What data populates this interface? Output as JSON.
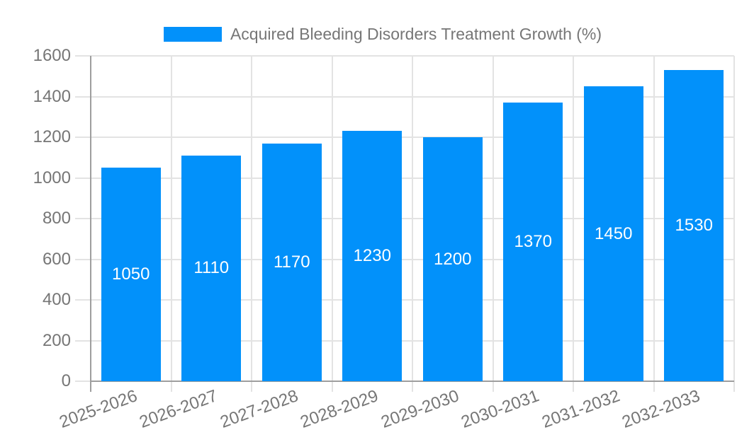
{
  "chart_data": {
    "type": "bar",
    "title": "",
    "categories": [
      "2025-2026",
      "2026-2027",
      "2027-2028",
      "2028-2029",
      "2029-2030",
      "2030-2031",
      "2031-2032",
      "2032-2033"
    ],
    "series": [
      {
        "name": "Acquired Bleeding Disorders Treatment Growth (%)",
        "values": [
          1050,
          1110,
          1170,
          1230,
          1200,
          1370,
          1450,
          1530
        ]
      }
    ],
    "bar_value_labels": [
      "1050",
      "1110",
      "1170",
      "1230",
      "1200",
      "1370",
      "1450",
      "1530"
    ],
    "ylim": [
      0,
      1600
    ],
    "y_ticks": [
      0,
      200,
      400,
      600,
      800,
      1000,
      1200,
      1400,
      1600
    ],
    "y_tick_labels": [
      "0",
      "200",
      "400",
      "600",
      "800",
      "1000",
      "1200",
      "1400",
      "1600"
    ],
    "grid": true,
    "legend_position": "top",
    "x_label_rotation_deg": -20,
    "value_label_position": "center-of-bar"
  },
  "colors": {
    "bar": "#0291fa",
    "grid": "#e3e3e3",
    "axis": "#9e9e9e",
    "tick_text": "#767676",
    "legend_text": "#767676",
    "bar_label_text": "#ffffff",
    "background": "#ffffff"
  }
}
